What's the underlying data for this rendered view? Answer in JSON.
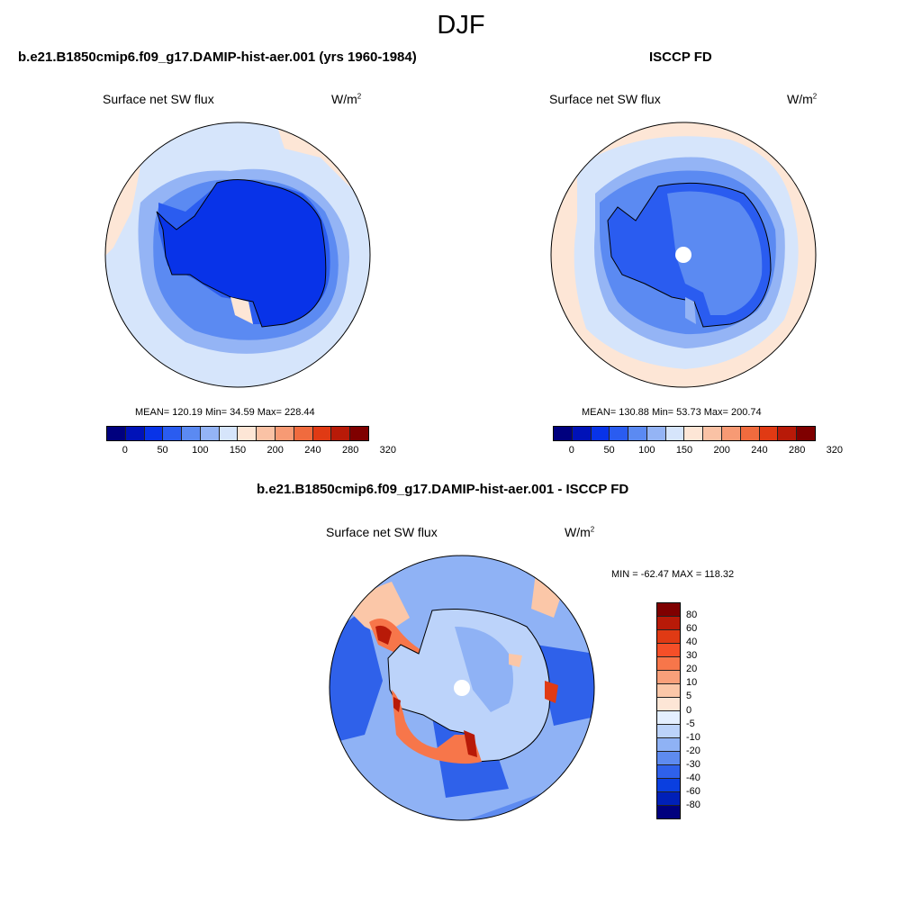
{
  "figure": {
    "season": "DJF"
  },
  "panels": [
    {
      "title": "b.e21.B1850cmip6.f09_g17.DAMIP-hist-aer.001 (yrs 1960-1984)",
      "field_label": "Surface net SW flux",
      "units": "W/m",
      "units_exp": "2",
      "stats": "MEAN= 120.19  Min=  34.59  Max= 228.44",
      "colorbar_colors": [
        "#00007e",
        "#0012b8",
        "#0833e8",
        "#2a5cf0",
        "#5b8af2",
        "#94b4f5",
        "#d6e5fb",
        "#fde6d6",
        "#fac2a5",
        "#f79a74",
        "#f06b3e",
        "#e03a14",
        "#b81a08",
        "#7f0000"
      ],
      "colorbar_ticks": [
        "0",
        "50",
        "100",
        "150",
        "200",
        "240",
        "280",
        "320"
      ]
    },
    {
      "title": "ISCCP FD",
      "field_label": "Surface net SW flux",
      "units": "W/m",
      "units_exp": "2",
      "stats": "MEAN= 130.88  Min=  53.73  Max= 200.74",
      "colorbar_colors": [
        "#00007e",
        "#0012b8",
        "#0833e8",
        "#2a5cf0",
        "#5b8af2",
        "#94b4f5",
        "#d6e5fb",
        "#fde6d6",
        "#fac2a5",
        "#f79a74",
        "#f06b3e",
        "#e03a14",
        "#b81a08",
        "#7f0000"
      ],
      "colorbar_ticks": [
        "0",
        "50",
        "100",
        "150",
        "200",
        "240",
        "280",
        "320"
      ]
    },
    {
      "title": "b.e21.B1850cmip6.f09_g17.DAMIP-hist-aer.001 - ISCCP FD",
      "field_label": "Surface net SW flux",
      "units": "W/m",
      "units_exp": "2",
      "stats": "MIN = -62.47 MAX = 118.32",
      "colorbar_colors": [
        "#7f0000",
        "#b81a08",
        "#e03a14",
        "#f54f28",
        "#f7764a",
        "#f9a07a",
        "#fbc7a8",
        "#fde6d6",
        "#e4efff",
        "#bcd3fa",
        "#8fb2f5",
        "#5e8bf0",
        "#2f61ea",
        "#0a3fe0",
        "#0020b8",
        "#00007e"
      ],
      "colorbar_ticks": [
        "80",
        "60",
        "40",
        "30",
        "20",
        "10",
        "5",
        "0",
        "-5",
        "-10",
        "-20",
        "-30",
        "-40",
        "-60",
        "-80"
      ]
    }
  ]
}
